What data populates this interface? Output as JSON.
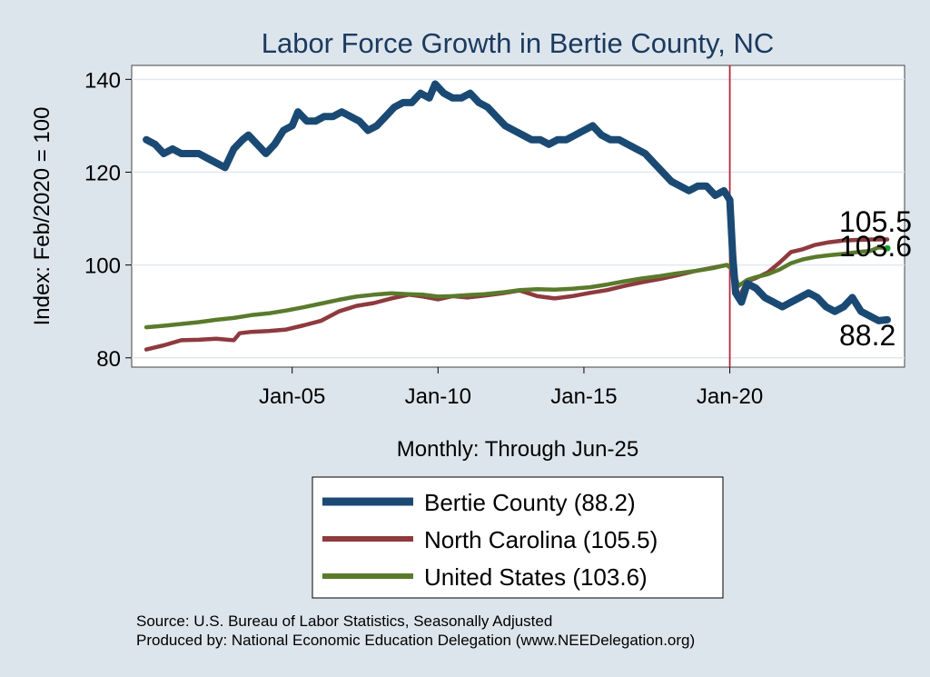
{
  "colors": {
    "background": "#dde5ec",
    "plot_area": "#ffffff",
    "grid": "#e2e8ee",
    "bertie": "#1a4a73",
    "north_carolina": "#8e3a3e",
    "united_states": "#5a7a2c",
    "reference_line": "#b5283f",
    "title": "#1b3a60"
  },
  "chart_data": {
    "type": "line",
    "title": "Labor Force Growth in Bertie  County, NC",
    "xlabel": "Monthly: Through Jun-25",
    "ylabel": "Index: Feb/2020 = 100",
    "ylim": [
      78,
      143
    ],
    "xlim": [
      1999.5,
      2025.99
    ],
    "x_ticks": [
      2005,
      2010,
      2015,
      2020
    ],
    "x_tick_labels": [
      "Jan-05",
      "Jan-10",
      "Jan-15",
      "Jan-20"
    ],
    "y_ticks": [
      80,
      100,
      120,
      140
    ],
    "y_tick_labels": [
      "80",
      "100",
      "120",
      "140"
    ],
    "grid": true,
    "reference_line_x": 2020.0,
    "series": [
      {
        "key": "bertie",
        "name": "Bertie  County (88.2)",
        "end_label": "88.2",
        "x": [
          2000.0,
          2000.3,
          2000.6,
          2000.9,
          2001.2,
          2001.5,
          2001.8,
          2002.1,
          2002.4,
          2002.7,
          2003.0,
          2003.3,
          2003.5,
          2003.8,
          2004.1,
          2004.4,
          2004.7,
          2005.0,
          2005.2,
          2005.5,
          2005.8,
          2006.1,
          2006.4,
          2006.7,
          2007.0,
          2007.3,
          2007.6,
          2007.9,
          2008.2,
          2008.5,
          2008.8,
          2009.1,
          2009.4,
          2009.7,
          2009.9,
          2010.2,
          2010.5,
          2010.8,
          2011.1,
          2011.4,
          2011.7,
          2012.0,
          2012.3,
          2012.6,
          2012.9,
          2013.2,
          2013.5,
          2013.8,
          2014.1,
          2014.4,
          2014.7,
          2015.0,
          2015.3,
          2015.6,
          2015.9,
          2016.2,
          2016.5,
          2016.8,
          2017.1,
          2017.4,
          2017.7,
          2018.0,
          2018.3,
          2018.6,
          2018.9,
          2019.2,
          2019.5,
          2019.8,
          2020.0,
          2020.1,
          2020.2,
          2020.4,
          2020.6,
          2020.9,
          2021.2,
          2021.5,
          2021.8,
          2022.1,
          2022.4,
          2022.7,
          2023.0,
          2023.3,
          2023.6,
          2023.9,
          2024.2,
          2024.5,
          2024.8,
          2025.1,
          2025.4
        ],
        "values": [
          127,
          126,
          124,
          125,
          124,
          124,
          124,
          123,
          122,
          121,
          125,
          127,
          128,
          126,
          124,
          126,
          129,
          130,
          133,
          131,
          131,
          132,
          132,
          133,
          132,
          131,
          129,
          130,
          132,
          134,
          135,
          135,
          137,
          136,
          139,
          137,
          136,
          136,
          137,
          135,
          134,
          132,
          130,
          129,
          128,
          127,
          127,
          126,
          127,
          127,
          128,
          129,
          130,
          128,
          127,
          127,
          126,
          125,
          124,
          122,
          120,
          118,
          117,
          116,
          117,
          117,
          115,
          116,
          114,
          102,
          94,
          92,
          96,
          95,
          93,
          92,
          91,
          92,
          93,
          94,
          93,
          91,
          90,
          91,
          93,
          90,
          89,
          88,
          88.2
        ]
      },
      {
        "key": "north_carolina",
        "name": "North Carolina (105.5)",
        "end_label": "105.5",
        "x": [
          2000.0,
          2000.6,
          2001.2,
          2001.8,
          2002.4,
          2003.0,
          2003.2,
          2003.6,
          2004.2,
          2004.8,
          2005.4,
          2006.0,
          2006.6,
          2007.2,
          2007.8,
          2008.4,
          2009.0,
          2009.5,
          2010.0,
          2010.5,
          2011.0,
          2011.6,
          2012.2,
          2012.8,
          2013.4,
          2014.0,
          2014.6,
          2015.2,
          2015.8,
          2016.4,
          2017.0,
          2017.6,
          2018.2,
          2018.8,
          2019.4,
          2019.9,
          2020.1,
          2020.3,
          2020.6,
          2020.9,
          2021.3,
          2021.7,
          2022.1,
          2022.5,
          2022.9,
          2023.4,
          2023.9,
          2024.4,
          2024.9,
          2025.4
        ],
        "values": [
          81.8,
          82.7,
          83.8,
          83.9,
          84.1,
          83.8,
          85.3,
          85.6,
          85.8,
          86.1,
          87.0,
          88.0,
          90.0,
          91.2,
          91.8,
          92.8,
          93.6,
          93.2,
          92.6,
          93.3,
          93.0,
          93.4,
          93.9,
          94.5,
          93.3,
          92.8,
          93.3,
          94.0,
          94.6,
          95.5,
          96.3,
          97.0,
          97.8,
          98.7,
          99.4,
          100.0,
          99.0,
          93.0,
          96.5,
          97.2,
          98.4,
          100.5,
          102.8,
          103.4,
          104.3,
          104.9,
          105.3,
          105.4,
          105.5,
          105.5
        ]
      },
      {
        "key": "united_states",
        "name": "United States (103.6)",
        "end_label": "103.6",
        "x": [
          2000.0,
          2000.6,
          2001.2,
          2001.8,
          2002.4,
          2003.0,
          2003.6,
          2004.2,
          2004.8,
          2005.4,
          2006.0,
          2006.6,
          2007.2,
          2007.8,
          2008.4,
          2009.0,
          2009.5,
          2010.0,
          2010.5,
          2011.0,
          2011.6,
          2012.2,
          2012.8,
          2013.4,
          2014.0,
          2014.6,
          2015.2,
          2015.8,
          2016.4,
          2017.0,
          2017.6,
          2018.2,
          2018.8,
          2019.4,
          2019.9,
          2020.1,
          2020.3,
          2020.6,
          2020.9,
          2021.3,
          2021.7,
          2022.1,
          2022.5,
          2022.9,
          2023.4,
          2023.9,
          2024.4,
          2024.8,
          2025.1,
          2025.4
        ],
        "values": [
          86.6,
          86.9,
          87.3,
          87.7,
          88.2,
          88.6,
          89.2,
          89.6,
          90.2,
          90.9,
          91.7,
          92.5,
          93.2,
          93.6,
          93.9,
          93.7,
          93.6,
          93.2,
          93.3,
          93.5,
          93.7,
          94.1,
          94.6,
          94.8,
          94.7,
          94.9,
          95.2,
          95.8,
          96.5,
          97.1,
          97.6,
          98.2,
          98.7,
          99.3,
          100.0,
          99.0,
          95.5,
          96.8,
          97.4,
          98.0,
          99.0,
          100.4,
          101.2,
          101.7,
          102.1,
          102.4,
          102.8,
          103.0,
          103.8,
          103.6
        ]
      }
    ]
  },
  "legend": {
    "items": [
      "Bertie  County (88.2)",
      "North Carolina (105.5)",
      "United States (103.6)"
    ]
  },
  "source": {
    "line1": "Source: U.S. Bureau of Labor Statistics, Seasonally Adjusted",
    "line2": "Produced by: National Economic Education Delegation (www.NEEDelegation.org)"
  }
}
